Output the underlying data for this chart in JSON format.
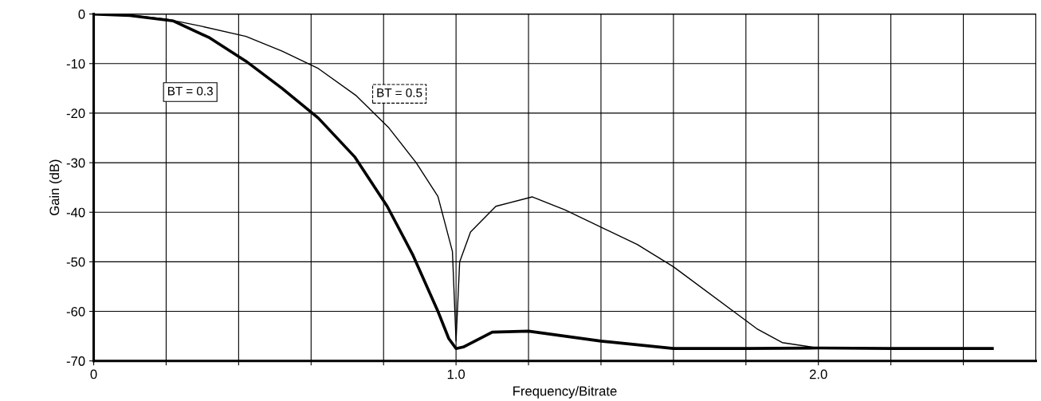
{
  "chart_data": {
    "type": "line",
    "xlabel": "Frequency/Bitrate",
    "ylabel": "Gain (dB)",
    "xlim": [
      0,
      2.6
    ],
    "ylim": [
      -70,
      0
    ],
    "xticks": [
      {
        "value": 0,
        "label": "0"
      },
      {
        "value": 0.2,
        "label": null
      },
      {
        "value": 0.4,
        "label": null
      },
      {
        "value": 0.6,
        "label": null
      },
      {
        "value": 0.8,
        "label": null
      },
      {
        "value": 1.0,
        "label": "1.0"
      },
      {
        "value": 1.2,
        "label": null
      },
      {
        "value": 1.4,
        "label": null
      },
      {
        "value": 1.6,
        "label": null
      },
      {
        "value": 1.8,
        "label": null
      },
      {
        "value": 2.0,
        "label": "2.0"
      },
      {
        "value": 2.2,
        "label": null
      },
      {
        "value": 2.4,
        "label": null
      }
    ],
    "yticks": [
      0,
      -10,
      -20,
      -30,
      -40,
      -50,
      -60,
      -70
    ],
    "grid": true,
    "marker": "none",
    "series": [
      {
        "name": "BT = 0.3",
        "color": "#000000",
        "x": [
          0,
          0.1,
          0.22,
          0.32,
          0.42,
          0.52,
          0.62,
          0.72,
          0.81,
          0.88,
          0.95,
          0.98,
          1.0,
          1.02,
          1.1,
          1.2,
          1.4,
          1.6,
          1.8,
          2.0,
          2.2,
          2.48
        ],
        "values": [
          0,
          -0.3,
          -1.4,
          -4.8,
          -9.5,
          -15,
          -21,
          -28.8,
          -38.8,
          -48.5,
          -60,
          -65.5,
          -67.5,
          -67.2,
          -64.2,
          -64,
          -66,
          -67.5,
          -67.5,
          -67.4,
          -67.5,
          -67.5
        ]
      },
      {
        "name": "BT = 0.5",
        "color": "#000000",
        "x": [
          0,
          0.1,
          0.2,
          0.3,
          0.42,
          0.52,
          0.62,
          0.725,
          0.815,
          0.89,
          0.95,
          0.99,
          1.0,
          1.01,
          1.04,
          1.06,
          1.11,
          1.21,
          1.3,
          1.5,
          1.6,
          1.83,
          1.9,
          2.0
        ],
        "values": [
          0,
          -0.2,
          -1,
          -2.5,
          -4.5,
          -7.5,
          -11,
          -16.5,
          -23,
          -30,
          -36.8,
          -47.9,
          -66,
          -50,
          -44,
          -42.5,
          -38.8,
          -36.9,
          -39.5,
          -46.5,
          -51,
          -63.5,
          -66.3,
          -67.4
        ]
      }
    ]
  }
}
